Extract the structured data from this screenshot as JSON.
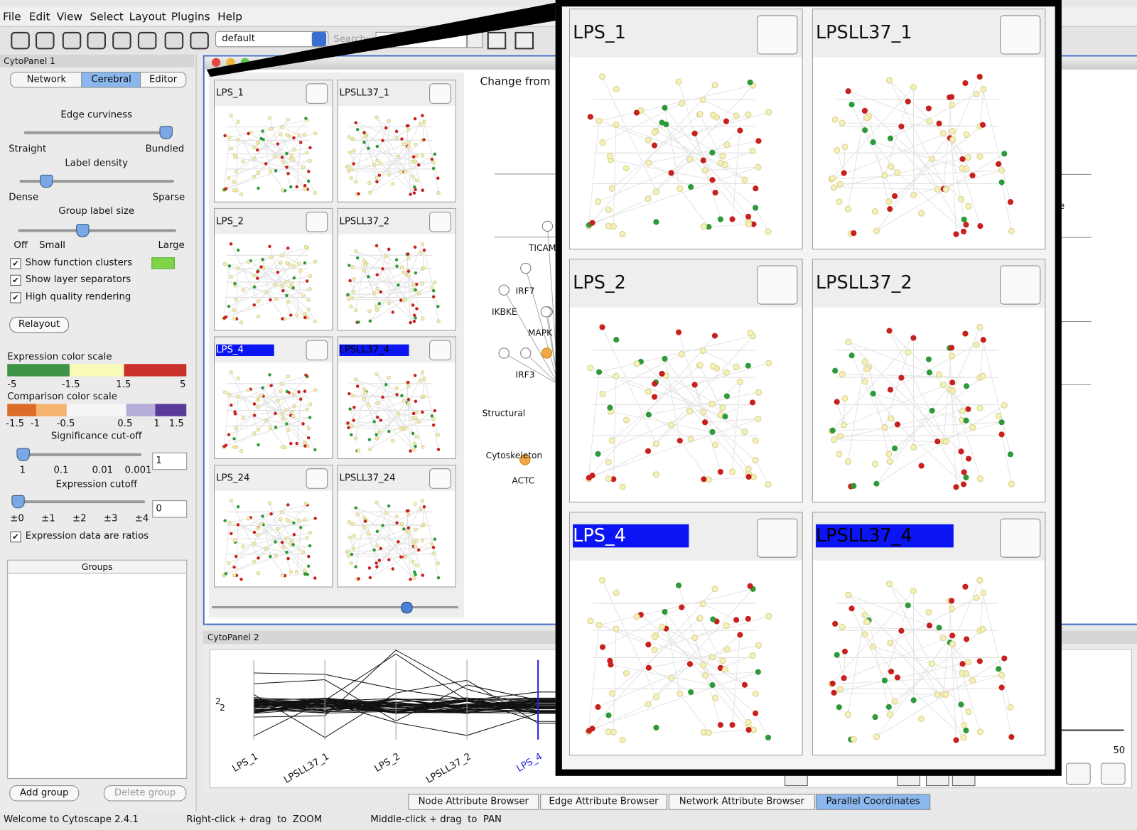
{
  "menu": [
    "File",
    "Edit",
    "View",
    "Select",
    "Layout",
    "Plugins",
    "Help"
  ],
  "toolbar": {
    "layout_select": "default",
    "search_label": "Search:"
  },
  "cytopanel1": {
    "title": "CytoPanel 1",
    "tabs": [
      "Network",
      "Cerebral",
      "Editor"
    ],
    "edge_curviness": {
      "label": "Edge curviness",
      "min": "Straight",
      "max": "Bundled"
    },
    "label_density": {
      "label": "Label density",
      "min": "Dense",
      "max": "Sparse"
    },
    "group_label_size": {
      "label": "Group label size",
      "ticks": [
        "Off",
        "Small",
        "Large"
      ]
    },
    "checkboxes": [
      "Show function clusters",
      "Show layer separators",
      "High quality rendering"
    ],
    "relayout": "Relayout",
    "expression_scale": {
      "label": "Expression color scale",
      "ticks": [
        "-5",
        "-1.5",
        "1.5",
        "5"
      ]
    },
    "comparison_scale": {
      "label": "Comparison color scale",
      "ticks": [
        "-1.5",
        "-1",
        "-0.5",
        "0.5",
        "1",
        "1.5"
      ]
    },
    "significance": {
      "label": "Significance cut-off",
      "ticks": [
        "1",
        "0.1",
        "0.01",
        "0.001"
      ],
      "input": "1"
    },
    "expression_cutoff": {
      "label": "Expression cutoff",
      "ticks": [
        "±0",
        "±1",
        "±2",
        "±3",
        "±4"
      ],
      "input": "0"
    },
    "ratios": "Expression data are ratios",
    "groups_header": "Groups",
    "buttons": [
      "Add group",
      "Delete group"
    ]
  },
  "conditions": [
    "LPS_1",
    "LPSLL37_1",
    "LPS_2",
    "LPSLL37_2",
    "LPS_4",
    "LPSLL37_4",
    "LPS_24",
    "LPSLL37_24"
  ],
  "network_view": {
    "heading": "Change from",
    "node_labels": [
      "TICAM",
      "IRF7",
      "IKBKE",
      "MAPK",
      "IRF3",
      "Structural",
      "Cytoskeleton",
      "ACTC"
    ],
    "right_fragment": "ne"
  },
  "cytopanel2": {
    "title": "CytoPanel 2",
    "axis_labels": [
      "LPS_1",
      "LPSLL37_1",
      "LPS_2",
      "LPSLL37_2",
      "LPS_4"
    ],
    "axis_values": [
      "2",
      "2"
    ],
    "slider_max": "50"
  },
  "bottom_tabs": [
    "Node Attribute Browser",
    "Edge Attribute Browser",
    "Network Attribute Browser",
    "Parallel Coordinates"
  ],
  "status": [
    "Welcome to Cytoscape 2.4.1",
    "Right-click + drag  to  ZOOM",
    "Middle-click + drag  to  PAN"
  ]
}
